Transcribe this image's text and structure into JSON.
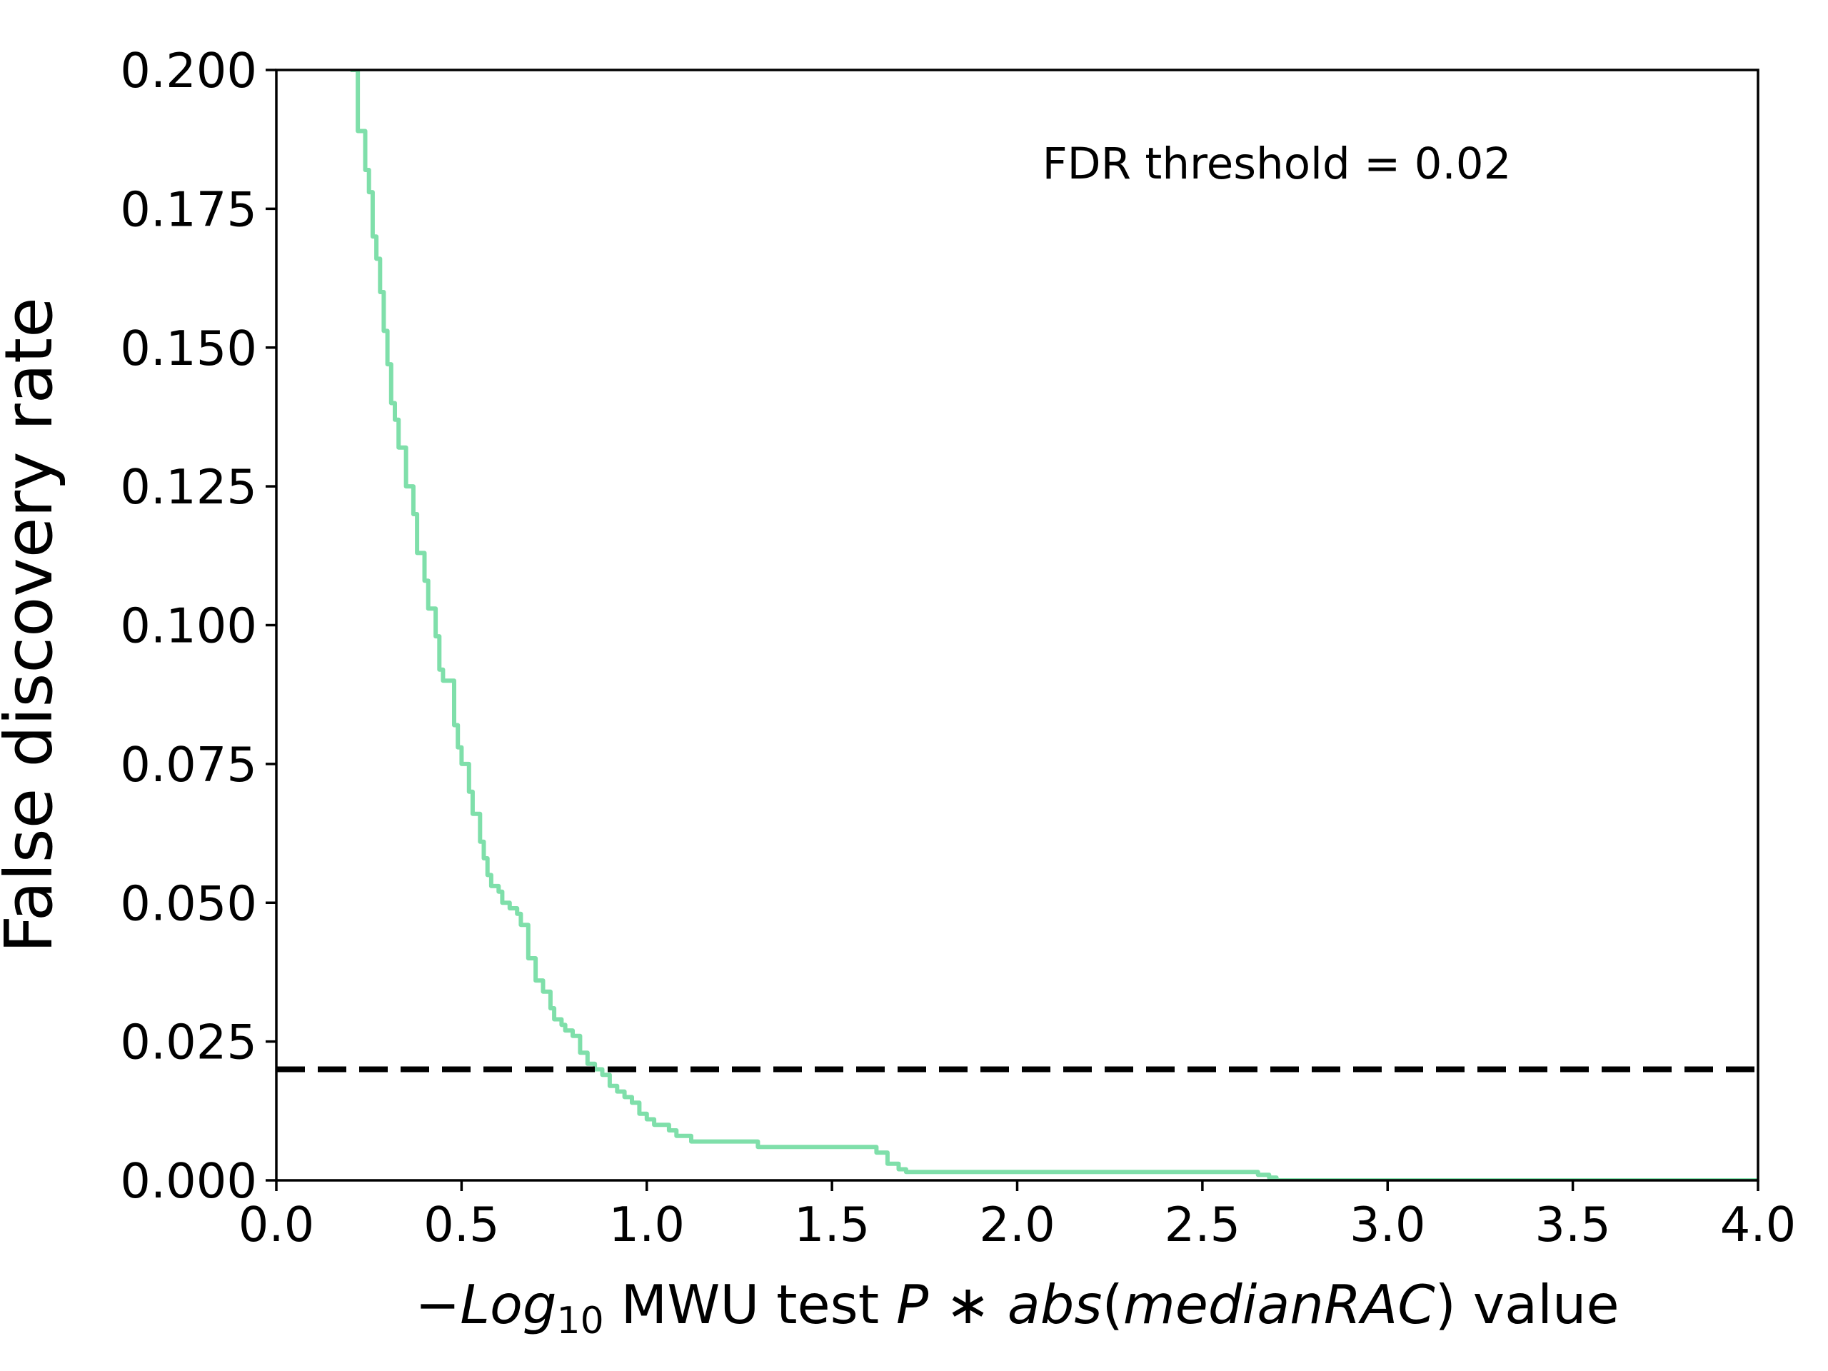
{
  "chart_data": {
    "type": "line",
    "xlabel": {
      "prefix": "−",
      "log_word": "Log",
      "log_base": "10",
      "middle": " MWU test ",
      "p": "P",
      "star": " ∗ ",
      "abs": "abs",
      "open_paren": "(",
      "median": "medianRAC",
      "close_paren": ")",
      "suffix": " value"
    },
    "ylabel": "False discovery rate",
    "xlim": [
      0.0,
      4.0
    ],
    "ylim": [
      0.0,
      0.2
    ],
    "x_ticks": [
      0.0,
      0.5,
      1.0,
      1.5,
      2.0,
      2.5,
      3.0,
      3.5,
      4.0
    ],
    "x_tick_labels": [
      "0.0",
      "0.5",
      "1.0",
      "1.5",
      "2.0",
      "2.5",
      "3.0",
      "3.5",
      "4.0"
    ],
    "y_ticks": [
      0.0,
      0.025,
      0.05,
      0.075,
      0.1,
      0.125,
      0.15,
      0.175,
      0.2
    ],
    "y_tick_labels": [
      "0.000",
      "0.025",
      "0.050",
      "0.075",
      "0.100",
      "0.125",
      "0.150",
      "0.175",
      "0.200"
    ],
    "grid": false,
    "threshold": {
      "value": 0.02,
      "label": "FDR threshold = 0.02",
      "color": "#000000",
      "style": "dashed"
    },
    "series": [
      {
        "color": "#7fdfaa",
        "x": [
          0.2,
          0.22,
          0.22,
          0.24,
          0.25,
          0.26,
          0.27,
          0.28,
          0.29,
          0.3,
          0.31,
          0.32,
          0.33,
          0.35,
          0.37,
          0.38,
          0.4,
          0.41,
          0.43,
          0.44,
          0.45,
          0.48,
          0.49,
          0.5,
          0.52,
          0.53,
          0.55,
          0.56,
          0.57,
          0.58,
          0.6,
          0.61,
          0.62,
          0.63,
          0.65,
          0.66,
          0.68,
          0.7,
          0.72,
          0.74,
          0.75,
          0.77,
          0.78,
          0.8,
          0.82,
          0.84,
          0.86,
          0.88,
          0.9,
          0.92,
          0.94,
          0.96,
          0.98,
          1.0,
          1.02,
          1.04,
          1.06,
          1.08,
          1.1,
          1.12,
          1.15,
          1.18,
          1.22,
          1.3,
          1.35,
          1.45,
          1.58,
          1.6,
          1.62,
          1.65,
          1.68,
          1.7,
          2.0,
          2.3,
          2.62,
          2.65,
          2.68,
          2.7,
          3.0,
          4.0
        ],
        "y": [
          0.2,
          0.193,
          0.189,
          0.182,
          0.178,
          0.17,
          0.166,
          0.16,
          0.153,
          0.147,
          0.14,
          0.137,
          0.132,
          0.125,
          0.12,
          0.113,
          0.108,
          0.103,
          0.098,
          0.092,
          0.09,
          0.082,
          0.078,
          0.075,
          0.07,
          0.066,
          0.061,
          0.058,
          0.055,
          0.053,
          0.052,
          0.05,
          0.05,
          0.049,
          0.048,
          0.046,
          0.04,
          0.036,
          0.034,
          0.031,
          0.029,
          0.028,
          0.027,
          0.026,
          0.023,
          0.021,
          0.02,
          0.019,
          0.017,
          0.016,
          0.015,
          0.014,
          0.012,
          0.011,
          0.01,
          0.01,
          0.009,
          0.008,
          0.008,
          0.007,
          0.007,
          0.007,
          0.007,
          0.006,
          0.006,
          0.006,
          0.006,
          0.006,
          0.005,
          0.003,
          0.002,
          0.0015,
          0.0015,
          0.0015,
          0.0015,
          0.001,
          0.0005,
          0.0,
          0.0,
          0.0
        ]
      }
    ]
  }
}
